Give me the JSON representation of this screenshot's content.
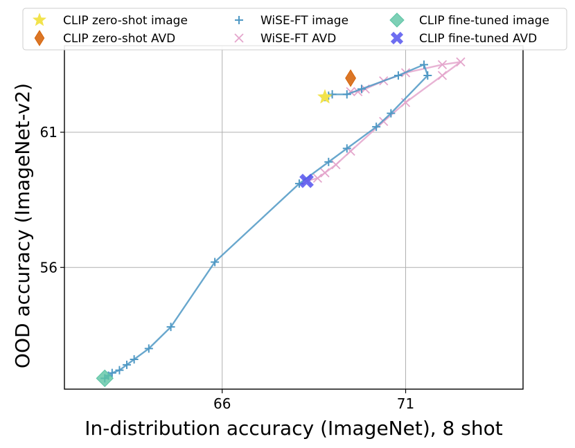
{
  "chart_data": {
    "type": "line",
    "xlabel": "In-distribution accuracy (ImageNet), 8 shot",
    "ylabel": "OOD accuracy (ImageNet-v2)",
    "xlim": [
      61.7,
      74.2
    ],
    "ylim": [
      51.5,
      64.2
    ],
    "x_ticks": [
      66,
      71
    ],
    "x_tick_labels": [
      "66",
      "71"
    ],
    "y_ticks": [
      56,
      61
    ],
    "y_tick_labels": [
      "56",
      "61"
    ],
    "grid": true,
    "legend_position": "top",
    "series": [
      {
        "name": "CLIP zero-shot image",
        "marker": "star",
        "color": "#f2e34c",
        "points": [
          [
            68.8,
            62.3
          ]
        ]
      },
      {
        "name": "CLIP zero-shot AVD",
        "marker": "diamond",
        "color": "#d55e00",
        "points": [
          [
            69.5,
            63.0
          ]
        ]
      },
      {
        "name": "CLIP fine-tuned image",
        "marker": "diamond",
        "color": "#5cc4a4",
        "points": [
          [
            62.8,
            51.9
          ]
        ]
      },
      {
        "name": "CLIP fine-tuned AVD",
        "marker": "x",
        "color": "#5555ee",
        "points": [
          [
            68.3,
            59.2
          ]
        ]
      },
      {
        "name": "WiSE-FT image",
        "marker": "+",
        "color": "#4e98c4",
        "points": [
          [
            62.8,
            51.9
          ],
          [
            62.9,
            52.0
          ],
          [
            63.0,
            52.1
          ],
          [
            63.2,
            52.2
          ],
          [
            63.4,
            52.4
          ],
          [
            63.6,
            52.6
          ],
          [
            64.0,
            53.0
          ],
          [
            64.6,
            53.8
          ],
          [
            65.8,
            56.2
          ],
          [
            68.1,
            59.1
          ],
          [
            68.9,
            59.9
          ],
          [
            69.4,
            60.4
          ],
          [
            70.2,
            61.2
          ],
          [
            70.6,
            61.7
          ],
          [
            71.6,
            63.1
          ],
          [
            71.5,
            63.5
          ],
          [
            70.8,
            63.1
          ],
          [
            69.8,
            62.6
          ],
          [
            69.4,
            62.4
          ],
          [
            69.0,
            62.4
          ],
          [
            68.9,
            62.35
          ],
          [
            68.8,
            62.3
          ]
        ]
      },
      {
        "name": "WiSE-FT AVD",
        "marker": "x",
        "color": "#e4a6cc",
        "points": [
          [
            68.3,
            59.2
          ],
          [
            68.6,
            59.3
          ],
          [
            68.8,
            59.5
          ],
          [
            69.1,
            59.8
          ],
          [
            69.5,
            60.3
          ],
          [
            70.4,
            61.4
          ],
          [
            71.0,
            62.1
          ],
          [
            72.0,
            63.1
          ],
          [
            72.5,
            63.6
          ],
          [
            72.0,
            63.5
          ],
          [
            71.0,
            63.2
          ],
          [
            70.4,
            62.9
          ],
          [
            69.9,
            62.6
          ],
          [
            69.7,
            62.5
          ],
          [
            69.5,
            62.5
          ]
        ]
      }
    ]
  }
}
